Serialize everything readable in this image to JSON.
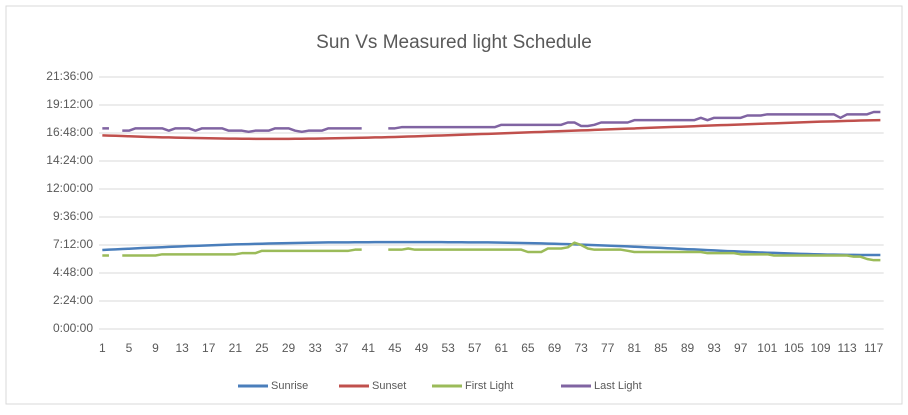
{
  "chart_data": {
    "type": "line",
    "title": "Sun Vs Measured light Schedule",
    "categories": [
      1,
      null,
      null,
      null,
      5,
      null,
      null,
      null,
      9,
      null,
      null,
      null,
      13,
      null,
      null,
      null,
      17,
      null,
      null,
      null,
      21,
      null,
      null,
      null,
      25,
      null,
      null,
      null,
      29,
      null,
      null,
      null,
      33,
      null,
      null,
      null,
      37,
      null,
      null,
      null,
      41,
      null,
      null,
      null,
      45,
      null,
      null,
      null,
      49,
      null,
      null,
      null,
      53,
      null,
      null,
      null,
      57,
      null,
      null,
      null,
      61,
      null,
      null,
      null,
      65,
      null,
      null,
      null,
      69,
      null,
      null,
      null,
      73,
      null,
      null,
      null,
      77,
      null,
      null,
      null,
      81,
      null,
      null,
      null,
      85,
      null,
      null,
      null,
      89,
      null,
      null,
      null,
      93,
      null,
      null,
      null,
      97,
      null,
      null,
      null,
      101,
      null,
      null,
      null,
      105,
      null,
      null,
      null,
      109,
      null,
      null,
      null,
      113,
      null,
      null,
      null,
      117,
      null
    ],
    "ylim": [
      0,
      21.6
    ],
    "yticks": [
      {
        "value": 0,
        "label": "0:00:00"
      },
      {
        "value": 2.4,
        "label": "2:24:00"
      },
      {
        "value": 4.8,
        "label": "4:48:00"
      },
      {
        "value": 7.2,
        "label": "7:12:00"
      },
      {
        "value": 9.6,
        "label": "9:36:00"
      },
      {
        "value": 12,
        "label": "12:00:00"
      },
      {
        "value": 14.4,
        "label": "14:24:00"
      },
      {
        "value": 16.8,
        "label": "16:48:00"
      },
      {
        "value": 19.2,
        "label": "19:12:00"
      },
      {
        "value": 21.6,
        "label": "21:36:00"
      }
    ],
    "grid": true,
    "legend": "bottom",
    "series": [
      {
        "name": "Sunrise",
        "color": "#4a7ebb",
        "values": [
          6.77,
          6.8,
          6.83,
          6.86,
          6.88,
          6.91,
          6.94,
          6.96,
          6.99,
          7.01,
          7.04,
          7.06,
          7.08,
          7.11,
          7.13,
          7.15,
          7.17,
          7.19,
          7.21,
          7.23,
          7.25,
          7.26,
          7.28,
          7.3,
          7.31,
          7.33,
          7.34,
          7.35,
          7.36,
          7.37,
          7.38,
          7.39,
          7.4,
          7.41,
          7.42,
          7.42,
          7.43,
          7.43,
          7.44,
          7.44,
          7.44,
          7.45,
          7.45,
          7.45,
          7.45,
          7.45,
          7.45,
          7.45,
          7.45,
          7.45,
          7.45,
          7.45,
          7.44,
          7.44,
          7.44,
          7.43,
          7.43,
          7.42,
          7.42,
          7.41,
          7.4,
          7.39,
          7.38,
          7.37,
          7.36,
          7.35,
          7.34,
          7.32,
          7.31,
          7.29,
          7.27,
          7.25,
          7.23,
          7.21,
          7.19,
          7.17,
          7.15,
          7.13,
          7.1,
          7.08,
          7.05,
          7.03,
          7.0,
          6.98,
          6.95,
          6.92,
          6.9,
          6.87,
          6.84,
          6.82,
          6.79,
          6.76,
          6.74,
          6.71,
          6.68,
          6.66,
          6.63,
          6.61,
          6.58,
          6.56,
          6.54,
          6.52,
          6.5,
          6.48,
          6.46,
          6.44,
          6.43,
          6.41,
          6.4,
          6.38,
          6.37,
          6.36,
          6.35,
          6.35,
          6.34,
          6.34,
          6.34,
          6.34
        ]
      },
      {
        "name": "Sunset",
        "color": "#c0504d",
        "values": [
          16.6,
          16.58,
          16.56,
          16.54,
          16.52,
          16.5,
          16.48,
          16.46,
          16.45,
          16.43,
          16.42,
          16.4,
          16.39,
          16.38,
          16.37,
          16.36,
          16.35,
          16.34,
          16.33,
          16.32,
          16.32,
          16.31,
          16.31,
          16.3,
          16.3,
          16.3,
          16.3,
          16.3,
          16.3,
          16.31,
          16.31,
          16.32,
          16.32,
          16.33,
          16.34,
          16.35,
          16.36,
          16.37,
          16.38,
          16.39,
          16.4,
          16.42,
          16.43,
          16.45,
          16.46,
          16.48,
          16.5,
          16.51,
          16.53,
          16.55,
          16.57,
          16.59,
          16.61,
          16.63,
          16.65,
          16.67,
          16.69,
          16.71,
          16.73,
          16.75,
          16.77,
          16.79,
          16.81,
          16.83,
          16.85,
          16.87,
          16.89,
          16.92,
          16.94,
          16.96,
          16.98,
          17.0,
          17.02,
          17.04,
          17.07,
          17.09,
          17.11,
          17.13,
          17.15,
          17.17,
          17.19,
          17.22,
          17.24,
          17.26,
          17.28,
          17.3,
          17.32,
          17.34,
          17.36,
          17.38,
          17.41,
          17.43,
          17.45,
          17.47,
          17.49,
          17.51,
          17.53,
          17.55,
          17.57,
          17.59,
          17.61,
          17.63,
          17.65,
          17.67,
          17.69,
          17.71,
          17.73,
          17.75,
          17.77,
          17.79,
          17.8,
          17.82,
          17.84,
          17.85,
          17.87,
          17.88,
          17.89,
          17.9
        ]
      },
      {
        "name": "First Light",
        "color": "#9bbb59",
        "values": [
          6.3,
          6.3,
          null,
          6.3,
          6.3,
          6.3,
          6.3,
          6.3,
          6.3,
          6.4,
          6.4,
          6.4,
          6.4,
          6.4,
          6.4,
          6.4,
          6.4,
          6.4,
          6.4,
          6.4,
          6.4,
          6.5,
          6.5,
          6.5,
          6.7,
          6.7,
          6.7,
          6.7,
          6.7,
          6.7,
          6.7,
          6.7,
          6.7,
          6.7,
          6.7,
          6.7,
          6.7,
          6.7,
          6.8,
          6.8,
          null,
          6.8,
          null,
          6.8,
          6.8,
          6.8,
          6.9,
          6.8,
          6.8,
          6.8,
          6.8,
          6.8,
          6.8,
          6.8,
          6.8,
          6.8,
          6.8,
          6.8,
          6.8,
          6.8,
          6.8,
          6.8,
          6.8,
          6.8,
          6.6,
          6.6,
          6.6,
          6.9,
          6.9,
          6.9,
          7.0,
          7.4,
          7.2,
          6.9,
          6.8,
          6.8,
          6.8,
          6.8,
          6.8,
          6.7,
          6.6,
          6.6,
          6.6,
          6.6,
          6.6,
          6.6,
          6.6,
          6.6,
          6.6,
          6.6,
          6.6,
          6.5,
          6.5,
          6.5,
          6.5,
          6.5,
          6.4,
          6.4,
          6.4,
          6.4,
          6.4,
          6.3,
          6.3,
          6.3,
          6.3,
          6.3,
          6.3,
          6.3,
          6.3,
          6.3,
          6.3,
          6.3,
          6.3,
          6.2,
          6.2,
          6.0,
          5.9,
          5.9
        ]
      },
      {
        "name": "Last Light",
        "color": "#8064a2",
        "values": [
          17.2,
          17.2,
          null,
          17.0,
          17.0,
          17.2,
          17.2,
          17.2,
          17.2,
          17.2,
          17.0,
          17.2,
          17.2,
          17.2,
          17.0,
          17.2,
          17.2,
          17.2,
          17.2,
          17.0,
          17.0,
          17.0,
          16.9,
          17.0,
          17.0,
          17.0,
          17.2,
          17.2,
          17.2,
          17.0,
          16.9,
          17.0,
          17.0,
          17.0,
          17.2,
          17.2,
          17.2,
          17.2,
          17.2,
          17.2,
          null,
          17.2,
          null,
          17.2,
          17.2,
          17.3,
          17.3,
          17.3,
          17.3,
          17.3,
          17.3,
          17.3,
          17.3,
          17.3,
          17.3,
          17.3,
          17.3,
          17.3,
          17.3,
          17.3,
          17.5,
          17.5,
          17.5,
          17.5,
          17.5,
          17.5,
          17.5,
          17.5,
          17.5,
          17.5,
          17.7,
          17.7,
          17.4,
          17.4,
          17.5,
          17.7,
          17.7,
          17.7,
          17.7,
          17.7,
          17.9,
          17.9,
          17.9,
          17.9,
          17.9,
          17.9,
          17.9,
          17.9,
          17.9,
          17.9,
          18.1,
          17.9,
          18.1,
          18.1,
          18.1,
          18.1,
          18.1,
          18.3,
          18.3,
          18.3,
          18.4,
          18.4,
          18.4,
          18.4,
          18.4,
          18.4,
          18.4,
          18.4,
          18.4,
          18.4,
          18.4,
          18.1,
          18.4,
          18.4,
          18.4,
          18.4,
          18.6,
          18.6
        ]
      }
    ]
  }
}
